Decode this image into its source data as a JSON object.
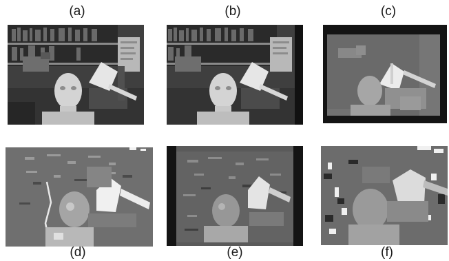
{
  "figure": {
    "panels": [
      {
        "id": "a",
        "label": "(a)",
        "kind": "left-camera-grayscale-photo"
      },
      {
        "id": "b",
        "label": "(b)",
        "kind": "right-camera-grayscale-photo"
      },
      {
        "id": "c",
        "label": "(c)",
        "kind": "ground-truth-disparity-map"
      },
      {
        "id": "d",
        "label": "(d)",
        "kind": "computed-disparity-map"
      },
      {
        "id": "e",
        "label": "(e)",
        "kind": "computed-disparity-map"
      },
      {
        "id": "f",
        "label": "(f)",
        "kind": "computed-disparity-map"
      }
    ]
  }
}
